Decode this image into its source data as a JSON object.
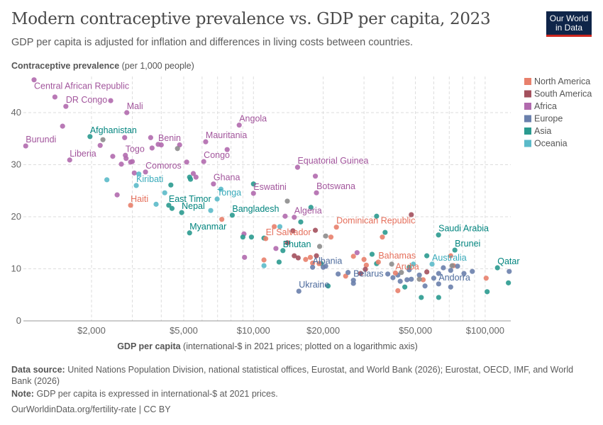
{
  "header": {
    "title": "Modern contraceptive prevalence vs. GDP per capita, 2023",
    "subtitle": "GDP per capita is adjusted for inflation and differences in living costs between countries.",
    "logo": "Our World in Data"
  },
  "chart_data": {
    "type": "scatter",
    "title": "Modern contraceptive prevalence vs. GDP per capita, 2023",
    "ylabel_bold": "Contraceptive prevalence",
    "ylabel_rest": "(per 1,000 people)",
    "xlabel_bold": "GDP per capita",
    "xlabel_rest": "(international-$ in 2021 prices; plotted on a logarithmic axis)",
    "x_scale": "log",
    "xlim": [
      1000,
      130000
    ],
    "ylim": [
      0,
      46
    ],
    "x_ticks": [
      {
        "v": 2000,
        "label": "$2,000"
      },
      {
        "v": 5000,
        "label": "$5,000"
      },
      {
        "v": 10000,
        "label": "$10,000"
      },
      {
        "v": 20000,
        "label": "$20,000"
      },
      {
        "v": 50000,
        "label": "$50,000"
      },
      {
        "v": 100000,
        "label": "$100,000"
      }
    ],
    "y_ticks": [
      {
        "v": 0,
        "label": "0"
      },
      {
        "v": 10,
        "label": "10"
      },
      {
        "v": 20,
        "label": "20"
      },
      {
        "v": 30,
        "label": "30"
      },
      {
        "v": 40,
        "label": "40"
      }
    ],
    "grid": true,
    "legend_position": "right",
    "legend": [
      {
        "key": "NA",
        "label": "North America",
        "color": "#e8806c"
      },
      {
        "key": "SA",
        "label": "South America",
        "color": "#a3505d"
      },
      {
        "key": "AF",
        "label": "Africa",
        "color": "#b16aae"
      },
      {
        "key": "EU",
        "label": "Europe",
        "color": "#6a80ac"
      },
      {
        "key": "AS",
        "label": "Asia",
        "color": "#2a9a8f"
      },
      {
        "key": "OC",
        "label": "Oceania",
        "color": "#5bbac9"
      }
    ],
    "label_colors": {
      "NA": "#e56e5a",
      "SA": "#9a3f4f",
      "AF": "#a2559c",
      "EU": "#4c6a9c",
      "AS": "#00847e",
      "OC": "#38aaba"
    },
    "other_color": "#8c8c8c",
    "points": [
      [
        "Central African Republic",
        1130,
        46.3,
        "AF"
      ],
      [
        "DR Congo",
        1550,
        41.2,
        "AF"
      ],
      [
        "Mali",
        2840,
        40.0,
        "AF"
      ],
      [
        "Angola",
        8680,
        37.6,
        "AF"
      ],
      [
        "Burundi",
        1040,
        33.6,
        "AF"
      ],
      [
        "Afghanistan",
        1970,
        35.4,
        "AS"
      ],
      [
        "Benin",
        3880,
        33.9,
        "AF"
      ],
      [
        "Mauritania",
        6220,
        34.4,
        "AF"
      ],
      [
        "Liberia",
        1610,
        30.9,
        "AF"
      ],
      [
        "Togo",
        2800,
        31.8,
        "AF"
      ],
      [
        "Congo",
        6100,
        30.6,
        "AF"
      ],
      [
        "Comoros",
        3420,
        28.6,
        "AF"
      ],
      [
        "Kiribati",
        3120,
        26.0,
        "OC"
      ],
      [
        "Ghana",
        6720,
        26.3,
        "AF"
      ],
      [
        "Equatorial Guinea",
        15500,
        29.5,
        "AF"
      ],
      [
        "Botswana",
        18700,
        24.6,
        "AF"
      ],
      [
        "Eswatini",
        10000,
        24.5,
        "AF"
      ],
      [
        "Tonga",
        6970,
        23.4,
        "OC"
      ],
      [
        "Haiti",
        2950,
        22.2,
        "NA"
      ],
      [
        "East Timor",
        4310,
        22.2,
        "AS"
      ],
      [
        "Nepal",
        4900,
        20.8,
        "AS"
      ],
      [
        "Bangladesh",
        8100,
        20.3,
        "AS"
      ],
      [
        "Myanmar",
        5300,
        16.9,
        "AS"
      ],
      [
        "Algeria",
        15000,
        19.9,
        "AF"
      ],
      [
        "El Salvador",
        11300,
        15.8,
        "NA"
      ],
      [
        "Dominican Republic",
        22800,
        18.0,
        "NA"
      ],
      [
        "Bhutan",
        13400,
        13.5,
        "AS"
      ],
      [
        "Albania",
        18000,
        10.3,
        "EU"
      ],
      [
        "Ukraine",
        15700,
        5.7,
        "EU"
      ],
      [
        "Belarus",
        27000,
        7.8,
        "EU"
      ],
      [
        "Bahamas",
        34600,
        11.3,
        "NA"
      ],
      [
        "Aruba",
        41000,
        9.2,
        "NA"
      ],
      [
        "Saudi Arabia",
        62900,
        16.5,
        "AS"
      ],
      [
        "Brunei",
        74000,
        13.6,
        "AS"
      ],
      [
        "Australia",
        59000,
        10.9,
        "OC"
      ],
      [
        "Qatar",
        113000,
        10.2,
        "AS"
      ],
      [
        "Andorra",
        63000,
        7.1,
        "EU"
      ],
      [
        "",
        1390,
        43,
        "AF"
      ],
      [
        "",
        1500,
        37.4,
        "AF"
      ],
      [
        "",
        2420,
        42.3,
        "AF"
      ],
      [
        "",
        2780,
        35.2,
        "AF"
      ],
      [
        "",
        2180,
        33.7,
        "AF"
      ],
      [
        "",
        3600,
        35.2,
        "AF"
      ],
      [
        "",
        3650,
        33.2,
        "AF"
      ],
      [
        "",
        4000,
        33.8,
        "AF"
      ],
      [
        "",
        4800,
        33.8,
        "AF"
      ],
      [
        "",
        2470,
        31.6,
        "AF"
      ],
      [
        "",
        2820,
        31.2,
        "AF"
      ],
      [
        "",
        2690,
        30.1,
        "AF"
      ],
      [
        "",
        2950,
        30.5,
        "AF"
      ],
      [
        "",
        3000,
        30.6,
        "AF"
      ],
      [
        "",
        3060,
        28.4,
        "AF"
      ],
      [
        "",
        5150,
        30.5,
        "AF"
      ],
      [
        "",
        5500,
        28.3,
        "AF"
      ],
      [
        "",
        5650,
        27.6,
        "AF"
      ],
      [
        "",
        7700,
        32.9,
        "AF"
      ],
      [
        "",
        2580,
        24.2,
        "AF"
      ],
      [
        "",
        9100,
        16.7,
        "AF"
      ],
      [
        "",
        9150,
        12.2,
        "AF"
      ],
      [
        "",
        13700,
        20.1,
        "AF"
      ],
      [
        "",
        18500,
        27.8,
        "AF"
      ],
      [
        "",
        12500,
        13.9,
        "AF"
      ],
      [
        "",
        28000,
        13.1,
        "AF"
      ],
      [
        "",
        4400,
        26.1,
        "AS"
      ],
      [
        "",
        5300,
        27.6,
        "AS"
      ],
      [
        "",
        5350,
        27.2,
        "AS"
      ],
      [
        "",
        4450,
        21.6,
        "AS"
      ],
      [
        "",
        10000,
        26.3,
        "AS"
      ],
      [
        "",
        9000,
        16.1,
        "AS"
      ],
      [
        "",
        9800,
        16.1,
        "AS"
      ],
      [
        "",
        11100,
        15.9,
        "AS"
      ],
      [
        "",
        12900,
        11.3,
        "AS"
      ],
      [
        "",
        17700,
        21.8,
        "AS"
      ],
      [
        "",
        16000,
        19.0,
        "AS"
      ],
      [
        "",
        19600,
        11.0,
        "AS"
      ],
      [
        "",
        21000,
        6.7,
        "AS"
      ],
      [
        "",
        34000,
        20.1,
        "AS"
      ],
      [
        "",
        37000,
        17.0,
        "AS"
      ],
      [
        "",
        32500,
        12.8,
        "AS"
      ],
      [
        "",
        56000,
        12.5,
        "AS"
      ],
      [
        "",
        47000,
        10.3,
        "AS"
      ],
      [
        "",
        45000,
        6.5,
        "AS"
      ],
      [
        "",
        53000,
        4.5,
        "AS"
      ],
      [
        "",
        63000,
        4.5,
        "AS"
      ],
      [
        "",
        102000,
        5.6,
        "AS"
      ],
      [
        "",
        126000,
        7.3,
        "AS"
      ],
      [
        "",
        34000,
        11.0,
        "AS"
      ],
      [
        "",
        2330,
        27.1,
        "OC"
      ],
      [
        "",
        3200,
        28.2,
        "OC"
      ],
      [
        "",
        3800,
        22.4,
        "OC"
      ],
      [
        "",
        4140,
        24.6,
        "OC"
      ],
      [
        "",
        6540,
        21.2,
        "OC"
      ],
      [
        "",
        7240,
        25.3,
        "OC"
      ],
      [
        "",
        11100,
        10.6,
        "OC"
      ],
      [
        "",
        13000,
        18.1,
        "OC"
      ],
      [
        "",
        49000,
        10.9,
        "OC"
      ],
      [
        "",
        7300,
        19.5,
        "NA"
      ],
      [
        "",
        11100,
        11.7,
        "NA"
      ],
      [
        "",
        12300,
        18.1,
        "NA"
      ],
      [
        "",
        16800,
        11.8,
        "NA"
      ],
      [
        "",
        17600,
        12.2,
        "NA"
      ],
      [
        "",
        18000,
        11.1,
        "NA"
      ],
      [
        "",
        19200,
        11.0,
        "NA"
      ],
      [
        "",
        21600,
        16.1,
        "NA"
      ],
      [
        "",
        36000,
        16.1,
        "NA"
      ],
      [
        "",
        27000,
        12.4,
        "NA"
      ],
      [
        "",
        30000,
        11.8,
        "NA"
      ],
      [
        "",
        30700,
        10.7,
        "NA"
      ],
      [
        "",
        42000,
        5.8,
        "NA"
      ],
      [
        "",
        54000,
        7.9,
        "NA"
      ],
      [
        "",
        71000,
        12.5,
        "NA"
      ],
      [
        "",
        73000,
        10.6,
        "NA"
      ],
      [
        "",
        101000,
        8.2,
        "NA"
      ],
      [
        "",
        25000,
        8.6,
        "NA"
      ],
      [
        "",
        18500,
        17.4,
        "SA"
      ],
      [
        "",
        14000,
        15.0,
        "SA"
      ],
      [
        "",
        18700,
        12.5,
        "SA"
      ],
      [
        "",
        15000,
        12.5,
        "SA"
      ],
      [
        "",
        14800,
        17.3,
        "SA"
      ],
      [
        "",
        15600,
        12.1,
        "SA"
      ],
      [
        "",
        30400,
        9.9,
        "SA"
      ],
      [
        "",
        29000,
        9.1,
        "SA"
      ],
      [
        "",
        48000,
        20.4,
        "SA"
      ],
      [
        "",
        56000,
        9.4,
        "SA"
      ],
      [
        "",
        20000,
        10.3,
        "EU"
      ],
      [
        "",
        20500,
        10.5,
        "EU"
      ],
      [
        "",
        23200,
        9.0,
        "EU"
      ],
      [
        "",
        25600,
        9.3,
        "EU"
      ],
      [
        "",
        27000,
        7.2,
        "EU"
      ],
      [
        "",
        38000,
        9.0,
        "EU"
      ],
      [
        "",
        40000,
        8.3,
        "EU"
      ],
      [
        "",
        42000,
        8.8,
        "EU"
      ],
      [
        "",
        43000,
        7.6,
        "EU"
      ],
      [
        "",
        48000,
        8.0,
        "EU"
      ],
      [
        "",
        52000,
        8.8,
        "EU"
      ],
      [
        "",
        55000,
        6.7,
        "EU"
      ],
      [
        "",
        60000,
        8.2,
        "EU"
      ],
      [
        "",
        63000,
        9.1,
        "EU"
      ],
      [
        "",
        71000,
        9.7,
        "EU"
      ],
      [
        "",
        71000,
        6.5,
        "EU"
      ],
      [
        "",
        81000,
        9.1,
        "EU"
      ],
      [
        "",
        88000,
        9.5,
        "EU"
      ],
      [
        "",
        127000,
        9.5,
        "EU"
      ],
      [
        "",
        47000,
        9.8,
        "EU"
      ],
      [
        "",
        66000,
        10.2,
        "EU"
      ],
      [
        "",
        76000,
        10.5,
        "EU"
      ],
      [
        "",
        46000,
        7.9,
        "EU"
      ],
      [
        "",
        2240,
        34.8,
        null
      ],
      [
        "",
        4700,
        33.1,
        null
      ],
      [
        "",
        14000,
        23.0,
        null
      ],
      [
        "",
        20500,
        16.3,
        null
      ],
      [
        "",
        19300,
        14.3,
        null
      ],
      [
        "",
        39500,
        10.9,
        null
      ],
      [
        "",
        43500,
        9.3,
        null
      ],
      [
        "",
        52000,
        8.0,
        null
      ],
      [
        "",
        72000,
        10.6,
        null
      ]
    ]
  },
  "footer": {
    "source_label": "Data source:",
    "source": "United Nations Population Division, national statistical offices, Eurostat, and World Bank (2026); Eurostat, OECD, IMF, and World Bank (2026)",
    "note_label": "Note:",
    "note": "GDP per capita is expressed in international-$ at 2021 prices.",
    "url": "OurWorldinData.org/fertility-rate | CC BY"
  }
}
